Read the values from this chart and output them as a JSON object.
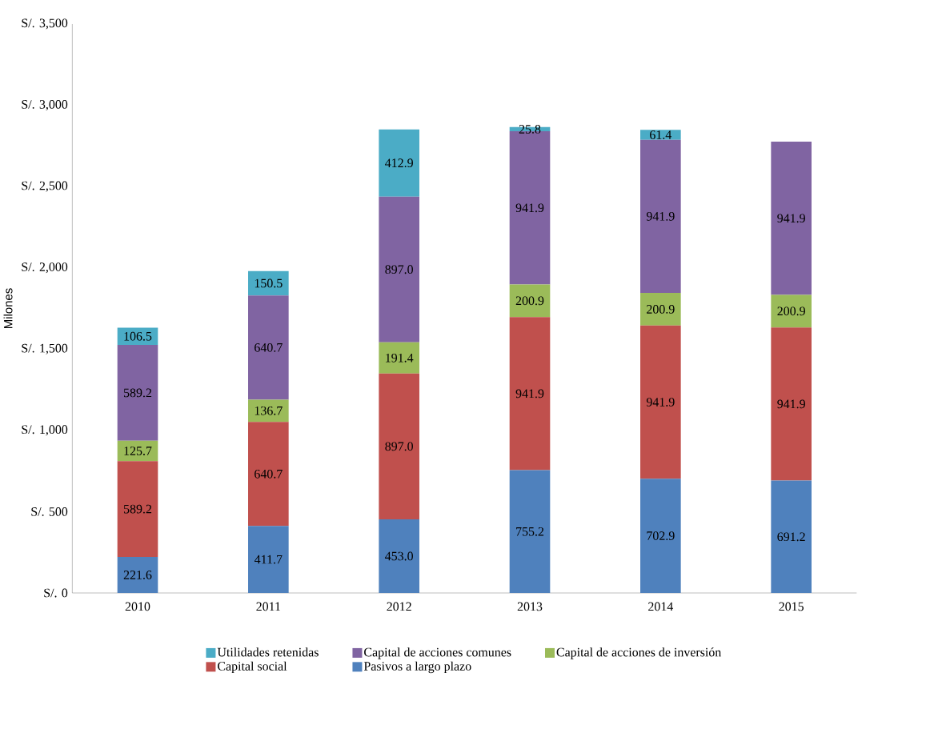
{
  "chart_data": {
    "type": "bar",
    "stacked": true,
    "ylabel": "Milones",
    "categories": [
      "2010",
      "2011",
      "2012",
      "2013",
      "2014",
      "2015"
    ],
    "ylim": [
      0,
      3500
    ],
    "yticks": [
      {
        "value": 0,
        "label": "S/. 0"
      },
      {
        "value": 500,
        "label": "S/. 500"
      },
      {
        "value": 1000,
        "label": "S/. 1,000"
      },
      {
        "value": 1500,
        "label": "S/. 1,500"
      },
      {
        "value": 2000,
        "label": "S/. 2,000"
      },
      {
        "value": 2500,
        "label": "S/. 2,500"
      },
      {
        "value": 3000,
        "label": "S/. 3,000"
      },
      {
        "value": 3500,
        "label": "S/. 3,500"
      }
    ],
    "legend": "bottom",
    "series": [
      {
        "name": "Pasivos a largo plazo",
        "color": "#4f81bd",
        "values": [
          221.6,
          411.7,
          453.0,
          755.2,
          702.9,
          691.2
        ],
        "value_labels": [
          "221.6",
          "411.7",
          "453.0",
          "755.2",
          "702.9",
          "691.2"
        ]
      },
      {
        "name": "Capital social",
        "color": "#c0504d",
        "values": [
          589.2,
          640.7,
          897.0,
          941.9,
          941.9,
          941.9
        ],
        "value_labels": [
          "589.2",
          "640.7",
          "897.0",
          "941.9",
          "941.9",
          "941.9"
        ]
      },
      {
        "name": "Capital de acciones de inversión",
        "color": "#9bbb59",
        "values": [
          125.7,
          136.7,
          191.4,
          200.9,
          200.9,
          200.9
        ],
        "value_labels": [
          "125.7",
          "136.7",
          "191.4",
          "200.9",
          "200.9",
          "200.9"
        ]
      },
      {
        "name": "Capital de acciones comunes",
        "color": "#8064a2",
        "values": [
          589.2,
          640.7,
          897.0,
          941.9,
          941.9,
          941.9
        ],
        "value_labels": [
          "589.2",
          "640.7",
          "897.0",
          "941.9",
          "941.9",
          "941.9"
        ]
      },
      {
        "name": "Utilidades retenidas",
        "color": "#4bacc6",
        "values": [
          106.5,
          150.5,
          412.9,
          25.8,
          61.4,
          null
        ],
        "value_labels": [
          "106.5",
          "150.5",
          "412.9",
          "25.8",
          "61.4",
          null
        ]
      }
    ]
  }
}
